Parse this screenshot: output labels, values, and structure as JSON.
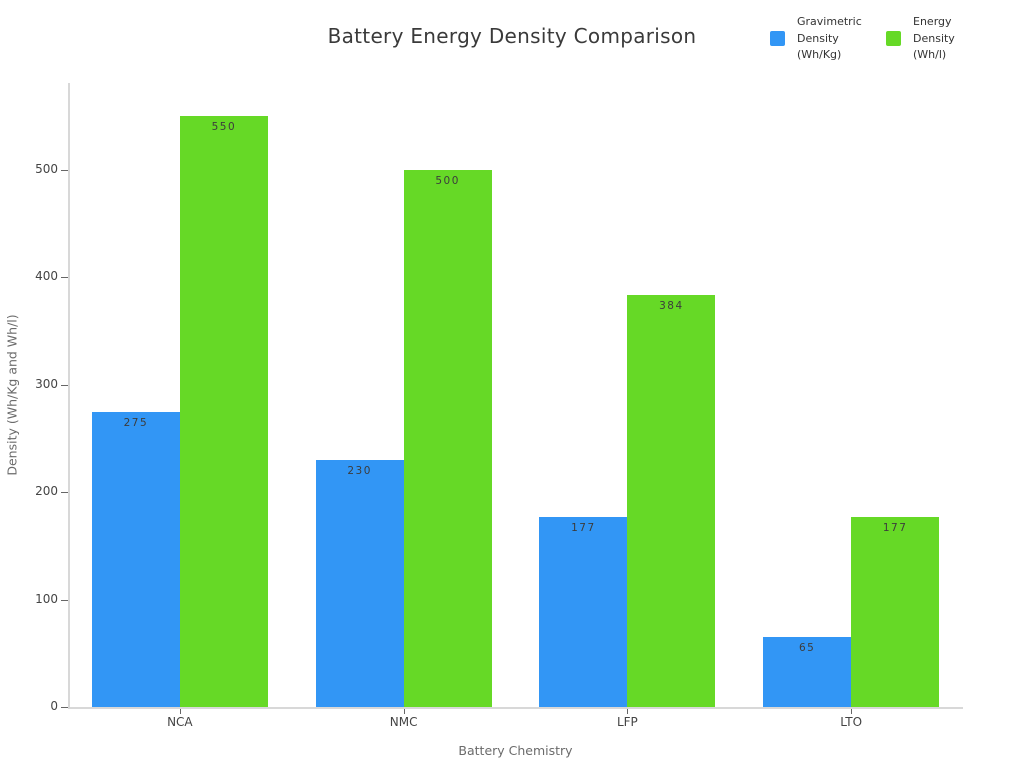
{
  "chart_data": {
    "type": "bar",
    "title": "Battery Energy Density Comparison",
    "xlabel": "Battery Chemistry",
    "ylabel": "Density (Wh/Kg and Wh/l)",
    "categories": [
      "NCA",
      "NMC",
      "LFP",
      "LTO"
    ],
    "series": [
      {
        "name": "Gravimetric\nDensity\n(Wh/Kg)",
        "color": "#3296f5",
        "values": [
          275,
          230,
          177,
          65
        ]
      },
      {
        "name": "Energy\nDensity\n(Wh/l)",
        "color": "#66d926",
        "values": [
          550,
          500,
          384,
          177
        ]
      }
    ],
    "bar_value_labels": [
      [
        "275",
        "230",
        "177",
        "65"
      ],
      [
        "550",
        "500",
        "384",
        "177"
      ]
    ],
    "ylim": [
      0,
      581
    ],
    "yticks": [
      0,
      100,
      200,
      300,
      400,
      500
    ],
    "grid": false,
    "legend_position": "top-right",
    "bar_labels_visible": true
  },
  "colors": {
    "series_blue": "#3296f5",
    "series_green": "#66d926",
    "axis_line": "#d8d8d8",
    "tick_text": "#444444",
    "axis_title_text": "#6b6b6b",
    "title_text": "#3a3a3a"
  }
}
